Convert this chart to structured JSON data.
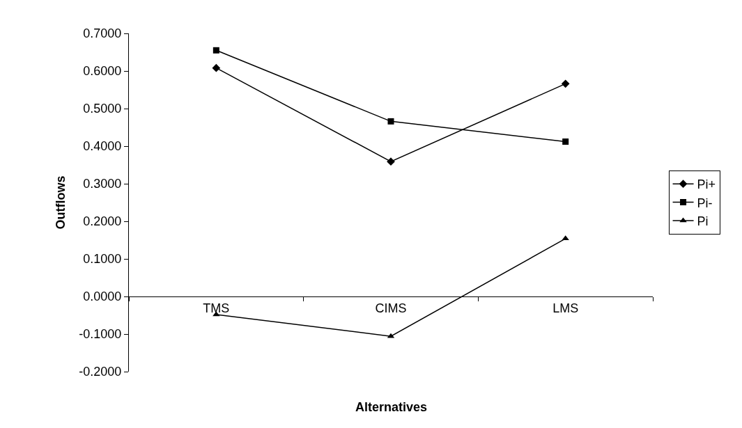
{
  "chart_data": {
    "type": "line",
    "xlabel": "Alternatives",
    "ylabel": "Outflows",
    "categories": [
      "TMS",
      "CIMS",
      "LMS"
    ],
    "series": [
      {
        "name": "Pi+",
        "color": "#000000",
        "marker": "diamond",
        "values": [
          0.608,
          0.359,
          0.566
        ]
      },
      {
        "name": "Pi-",
        "color": "#000000",
        "marker": "square",
        "values": [
          0.655,
          0.466,
          0.412
        ]
      },
      {
        "name": "Pi",
        "color": "#000000",
        "marker": "triangle",
        "values": [
          -0.048,
          -0.106,
          0.154
        ]
      }
    ],
    "ylim": [
      -0.2,
      0.7
    ],
    "yticks": [
      {
        "value": -0.2,
        "label": "-0.2000"
      },
      {
        "value": -0.1,
        "label": "-0.1000"
      },
      {
        "value": 0,
        "label": "0.0000"
      },
      {
        "value": 0.1,
        "label": "0.1000"
      },
      {
        "value": 0.2,
        "label": "0.2000"
      },
      {
        "value": 0.3,
        "label": "0.3000"
      },
      {
        "value": 0.4,
        "label": "0.4000"
      },
      {
        "value": 0.5,
        "label": "0.5000"
      },
      {
        "value": 0.6,
        "label": "0.6000"
      },
      {
        "value": 0.7,
        "label": "0.7000"
      }
    ],
    "legend": "right",
    "line_style": "solid"
  }
}
